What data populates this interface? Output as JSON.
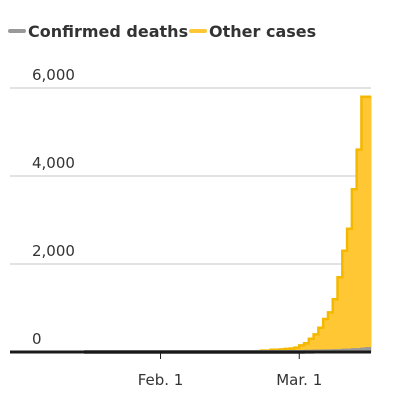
{
  "chart_data": {
    "type": "area",
    "title": "",
    "xlabel": "",
    "ylabel": "",
    "ylim": [
      0,
      6000
    ],
    "grid": true,
    "legend_position": "top-left",
    "x_range": [
      "2020-01-16",
      "2020-03-16"
    ],
    "y_ticks": [
      {
        "value": 6000,
        "label": "6,000"
      },
      {
        "value": 4000,
        "label": "4,000"
      },
      {
        "value": 2000,
        "label": "2,000"
      },
      {
        "value": 0,
        "label": "0"
      }
    ],
    "x_ticks": [
      {
        "date": "2020-02-01",
        "label": "Feb. 1"
      },
      {
        "date": "2020-03-01",
        "label": "Mar. 1"
      }
    ],
    "series": [
      {
        "name": "Confirmed deaths",
        "color": "#999999",
        "style": "line",
        "x": [
          "2020-01-16",
          "2020-01-31",
          "2020-02-15",
          "2020-02-25",
          "2020-02-29",
          "2020-03-02",
          "2020-03-04",
          "2020-03-06",
          "2020-03-08",
          "2020-03-10",
          "2020-03-12",
          "2020-03-14",
          "2020-03-15"
        ],
        "values": [
          0,
          0,
          0,
          0,
          1,
          6,
          11,
          14,
          21,
          31,
          43,
          57,
          68
        ]
      },
      {
        "name": "Other cases",
        "color": "#ffc734",
        "style": "area",
        "x": [
          "2020-01-16",
          "2020-01-21",
          "2020-01-31",
          "2020-02-10",
          "2020-02-20",
          "2020-02-22",
          "2020-02-24",
          "2020-02-26",
          "2020-02-27",
          "2020-02-28",
          "2020-02-29",
          "2020-03-01",
          "2020-03-02",
          "2020-03-03",
          "2020-03-04",
          "2020-03-05",
          "2020-03-06",
          "2020-03-07",
          "2020-03-08",
          "2020-03-09",
          "2020-03-10",
          "2020-03-11",
          "2020-03-12",
          "2020-03-13",
          "2020-03-14",
          "2020-03-15"
        ],
        "values": [
          0,
          2,
          8,
          12,
          15,
          30,
          50,
          60,
          70,
          80,
          100,
          150,
          200,
          300,
          400,
          550,
          750,
          900,
          1200,
          1700,
          2300,
          2800,
          3700,
          4600,
          5800,
          5800
        ]
      }
    ]
  }
}
